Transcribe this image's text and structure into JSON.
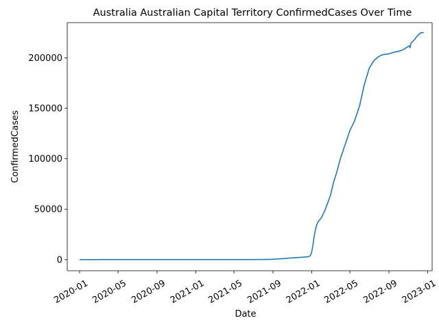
{
  "chart_data": {
    "type": "line",
    "title": "Australia Australian Capital Territory ConfirmedCases Over Time",
    "xlabel": "Date",
    "ylabel": "ConfirmedCases",
    "xlim": [
      "2019-11-23",
      "2023-01-15"
    ],
    "ylim": [
      -11000,
      235000
    ],
    "x_ticks": [
      "2020-01",
      "2020-05",
      "2020-09",
      "2021-01",
      "2021-05",
      "2021-09",
      "2022-01",
      "2022-05",
      "2022-09",
      "2023-01"
    ],
    "y_ticks": [
      0,
      50000,
      100000,
      150000,
      200000
    ],
    "y_tick_labels": [
      "0",
      "50000",
      "100000",
      "150000",
      "200000"
    ],
    "grid": false,
    "series": [
      {
        "color": "#1f77b4",
        "x": [
          "2020-01-01",
          "2020-03-15",
          "2021-07-01",
          "2021-08-15",
          "2021-09-10",
          "2021-10-01",
          "2021-11-01",
          "2021-12-01",
          "2021-12-20",
          "2021-12-28",
          "2022-01-01",
          "2022-01-05",
          "2022-01-08",
          "2022-01-12",
          "2022-01-16",
          "2022-01-20",
          "2022-01-25",
          "2022-02-01",
          "2022-02-10",
          "2022-02-20",
          "2022-03-01",
          "2022-03-10",
          "2022-03-20",
          "2022-04-01",
          "2022-04-15",
          "2022-05-01",
          "2022-05-15",
          "2022-06-01",
          "2022-06-15",
          "2022-07-01",
          "2022-07-15",
          "2022-07-25",
          "2022-08-01",
          "2022-08-10",
          "2022-08-20",
          "2022-09-01",
          "2022-09-05",
          "2022-09-15",
          "2022-10-01",
          "2022-10-15",
          "2022-10-25",
          "2022-11-01",
          "2022-11-05",
          "2022-11-06",
          "2022-11-10",
          "2022-11-20",
          "2022-11-30",
          "2022-12-10",
          "2022-12-20"
        ],
        "y": [
          0,
          100,
          100,
          200,
          500,
          1000,
          1800,
          2400,
          2800,
          4000,
          8000,
          15000,
          22000,
          29000,
          34000,
          37000,
          39000,
          42000,
          48000,
          56000,
          64000,
          76000,
          86000,
          100000,
          113000,
          128000,
          137000,
          153000,
          173000,
          190000,
          197000,
          200000,
          201500,
          203000,
          203500,
          204000,
          204500,
          205500,
          206500,
          208000,
          210000,
          211500,
          212000,
          210000,
          215000,
          218000,
          222000,
          225000,
          225000
        ]
      }
    ]
  }
}
